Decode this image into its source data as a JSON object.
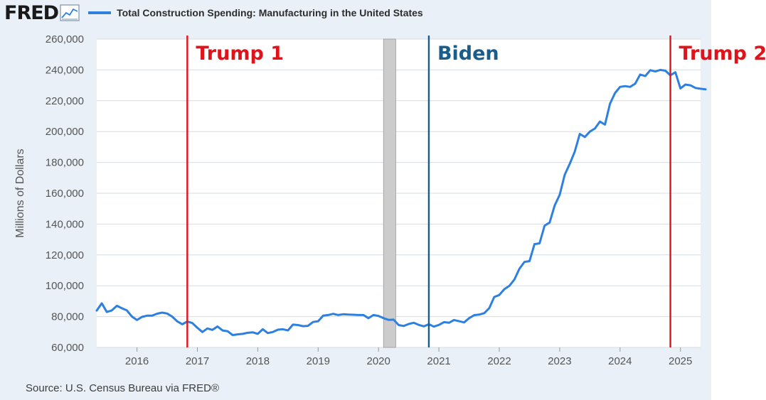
{
  "header": {
    "logo_text": "FRED",
    "logo_icon": "line-chart-icon",
    "legend_label": "Total Construction Spending: Manufacturing in the United States"
  },
  "source": "Source: U.S. Census Bureau via FRED®",
  "colors": {
    "series": "#2e80e0",
    "trump": "#e0121a",
    "biden": "#1a5c8a",
    "recession": "#cccccc",
    "grid": "#d4dbe3"
  },
  "chart_data": {
    "type": "line",
    "title": "",
    "xlabel": "",
    "ylabel": "Millions of Dollars",
    "ylim": [
      60000,
      260000
    ],
    "yticks": [
      "60,000",
      "80,000",
      "100,000",
      "120,000",
      "140,000",
      "160,000",
      "180,000",
      "200,000",
      "220,000",
      "240,000",
      "260,000"
    ],
    "ytick_values": [
      60000,
      80000,
      100000,
      120000,
      140000,
      160000,
      180000,
      200000,
      220000,
      240000,
      260000
    ],
    "xlim": [
      "2015-05",
      "2025-05"
    ],
    "xticks": [
      "2016",
      "2017",
      "2018",
      "2019",
      "2020",
      "2021",
      "2022",
      "2023",
      "2024",
      "2025"
    ],
    "grid": true,
    "recession_band": [
      "2020-02",
      "2020-04"
    ],
    "markers": [
      {
        "label": "Trump 1",
        "date": "2016-11",
        "color": "#e0121a"
      },
      {
        "label": "Biden",
        "date": "2020-11",
        "color": "#1a5c8a"
      },
      {
        "label": "Trump 2",
        "date": "2024-11",
        "color": "#e0121a"
      }
    ],
    "series": [
      {
        "name": "Total Construction Spending: Manufacturing in the United States",
        "color": "#2e80e0",
        "start": "2015-05",
        "frequency": "monthly",
        "values": [
          83900,
          88600,
          83000,
          84000,
          87000,
          85400,
          84000,
          80000,
          77800,
          79800,
          80600,
          80600,
          81900,
          82600,
          82000,
          80000,
          76900,
          75000,
          76800,
          75800,
          72700,
          70000,
          72300,
          71400,
          73600,
          71000,
          70500,
          68000,
          68500,
          68800,
          69500,
          69800,
          68800,
          71800,
          69300,
          70000,
          71500,
          71800,
          71000,
          74800,
          74500,
          73800,
          74000,
          76500,
          77000,
          80600,
          81000,
          81800,
          81000,
          81500,
          81300,
          81200,
          81000,
          81000,
          79000,
          81000,
          80400,
          79000,
          77900,
          78000,
          74500,
          73900,
          75200,
          76000,
          74600,
          73700,
          75000,
          73500,
          74600,
          76400,
          76000,
          77800,
          77000,
          76200,
          79000,
          80900,
          81300,
          82200,
          85500,
          92700,
          94000,
          97800,
          99900,
          104000,
          111000,
          115500,
          116000,
          127000,
          127500,
          139000,
          141000,
          152000,
          159000,
          172000,
          179000,
          187000,
          198500,
          196500,
          200000,
          202000,
          206500,
          204500,
          218000,
          225000,
          229000,
          229500,
          229000,
          231000,
          237000,
          236000,
          239800,
          239000,
          240000,
          239500,
          236500,
          238500,
          228000,
          230500,
          230000,
          228300,
          227800,
          227400
        ]
      }
    ]
  }
}
